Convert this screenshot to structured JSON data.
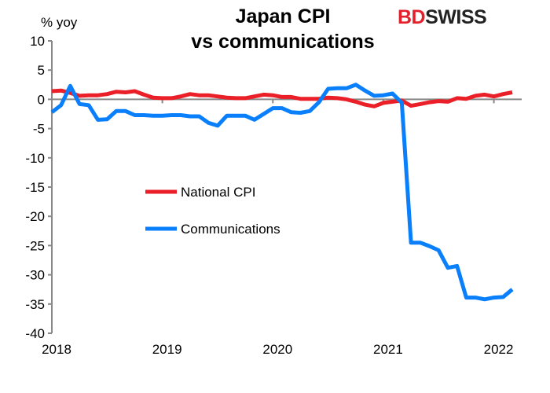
{
  "logo": {
    "part1": "BD",
    "part2": "SWISS"
  },
  "chart_data": {
    "type": "line",
    "title": [
      "Japan CPI",
      "vs communications"
    ],
    "ylabel": "% yoy",
    "xlabel": "",
    "ylim": [
      -40,
      10
    ],
    "yticks": [
      10,
      5,
      0,
      -5,
      -10,
      -15,
      -20,
      -25,
      -30,
      -35,
      -40
    ],
    "xtick_labels": [
      "2018",
      "2019",
      "2020",
      "2021",
      "2022"
    ],
    "x_start": "2018-01",
    "x_end": "2022-03",
    "frequency": "monthly",
    "grid": false,
    "legend_position": "center-left",
    "series": [
      {
        "name": "National CPI",
        "color": "#ea1f27",
        "values": [
          1.4,
          1.5,
          1.1,
          0.6,
          0.7,
          0.7,
          0.9,
          1.3,
          1.2,
          1.4,
          0.8,
          0.3,
          0.2,
          0.2,
          0.5,
          0.9,
          0.7,
          0.7,
          0.5,
          0.3,
          0.2,
          0.2,
          0.5,
          0.8,
          0.7,
          0.4,
          0.4,
          0.1,
          0.1,
          0.1,
          0.3,
          0.2,
          0.0,
          -0.4,
          -0.9,
          -1.2,
          -0.6,
          -0.4,
          -0.2,
          -1.1,
          -0.8,
          -0.5,
          -0.3,
          -0.4,
          0.2,
          0.1,
          0.6,
          0.8,
          0.5,
          0.9,
          1.2
        ]
      },
      {
        "name": "Communications",
        "color": "#0a7ffb",
        "values": [
          -2.2,
          -1.0,
          2.3,
          -0.8,
          -1.0,
          -3.5,
          -3.4,
          -2.0,
          -2.0,
          -2.7,
          -2.7,
          -2.8,
          -2.8,
          -2.7,
          -2.7,
          -2.9,
          -2.9,
          -4.0,
          -4.5,
          -2.8,
          -2.8,
          -2.8,
          -3.5,
          -2.5,
          -1.5,
          -1.5,
          -2.2,
          -2.3,
          -2.0,
          -0.5,
          1.8,
          1.9,
          1.9,
          2.5,
          1.5,
          0.6,
          0.7,
          1.0,
          -0.6,
          -24.5,
          -24.5,
          -25.1,
          -25.8,
          -28.8,
          -28.5,
          -33.9,
          -33.9,
          -34.2,
          -33.9,
          -33.8,
          -32.5
        ]
      }
    ]
  }
}
